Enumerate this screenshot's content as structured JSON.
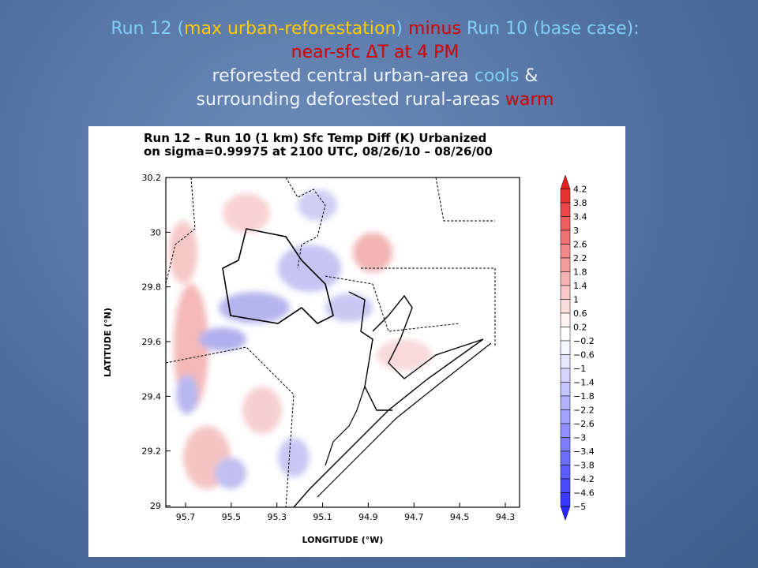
{
  "title": {
    "lines": [
      {
        "segments": [
          "Run 12 (",
          "max urban-reforestation",
          ")",
          " minus ",
          "Run 10 (base case):"
        ]
      },
      {
        "segments": [
          "near-sfc ΔT at 4 PM"
        ]
      },
      {
        "segments": [
          "reforested central urban-area ",
          "cools",
          " &"
        ]
      },
      {
        "segments": [
          "surrounding deforested rural-areas ",
          "warm"
        ]
      }
    ]
  },
  "map": {
    "plot_title": [
      "Run 12 – Run 10 (1 km) Sfc Temp Diff (K) Urbanized",
      "on sigma=0.99975 at 2100 UTC, 08/26/10 – 08/26/00"
    ],
    "y_label": "LATITUDE (°N)",
    "x_label": "LONGITUDE (°W)",
    "y_ticks": [
      "30.2",
      "30",
      "29.8",
      "29.6",
      "29.4",
      "29.2",
      "29"
    ],
    "x_ticks": [
      "95.7",
      "95.5",
      "95.3",
      "95.1",
      "94.9",
      "94.7",
      "94.5",
      "94.3"
    ],
    "colorbar_labels": [
      "4.2",
      "3.8",
      "3.4",
      "3",
      "2.6",
      "2.2",
      "1.8",
      "1.4",
      "1",
      "0.6",
      "0.2",
      "−0.2",
      "−0.6",
      "−1",
      "−1.4",
      "−1.8",
      "−2.2",
      "−2.6",
      "−3",
      "−3.4",
      "−3.8",
      "−4.2",
      "−4.6",
      "−5"
    ]
  }
}
